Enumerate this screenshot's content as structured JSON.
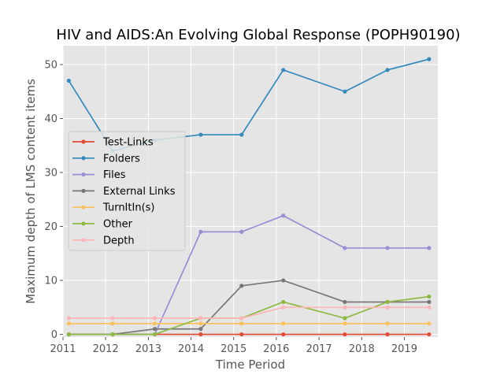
{
  "chart_data": {
    "type": "line",
    "title": "HIV and AIDS:An Evolving Global Response (POPH90190)",
    "xlabel": "Time Period",
    "ylabel": "Maximum depth of LMS content items",
    "xlim": [
      "2011-01-01",
      "2019-10-15"
    ],
    "ylim": [
      -0.5,
      53.5
    ],
    "x_ticks": [
      "2011",
      "2012",
      "2013",
      "2014",
      "2015",
      "2016",
      "2017",
      "2018",
      "2019"
    ],
    "y_ticks": [
      0,
      10,
      20,
      30,
      40,
      50
    ],
    "grid": true,
    "legend_position": "center-left",
    "x": [
      "2011-02-20",
      "2012-03-01",
      "2013-02-25",
      "2014-03-25",
      "2015-03-10",
      "2016-03-01",
      "2017-08-10",
      "2018-08-10",
      "2019-08-01"
    ],
    "series": [
      {
        "name": "Test-Links",
        "color": "#E24A33",
        "values": [
          0,
          0,
          0,
          0,
          0,
          0,
          0,
          0,
          0
        ]
      },
      {
        "name": "Folders",
        "color": "#348ABD",
        "values": [
          47,
          34,
          36,
          37,
          37,
          49,
          45,
          49,
          51
        ]
      },
      {
        "name": "Files",
        "color": "#988ED5",
        "values": [
          0,
          0,
          0,
          19,
          19,
          22,
          16,
          16,
          16
        ]
      },
      {
        "name": "External Links",
        "color": "#777777",
        "values": [
          0,
          0,
          1,
          1,
          9,
          10,
          6,
          6,
          6
        ]
      },
      {
        "name": "TurnItIn(s)",
        "color": "#FBC15E",
        "values": [
          2,
          2,
          2,
          2,
          2,
          2,
          2,
          2,
          2
        ]
      },
      {
        "name": "Other",
        "color": "#8EBA42",
        "values": [
          0,
          0,
          0,
          3,
          3,
          6,
          3,
          6,
          7
        ]
      },
      {
        "name": "Depth",
        "color": "#FFB5B8",
        "values": [
          3,
          3,
          3,
          3,
          3,
          5,
          5,
          5,
          5
        ]
      }
    ]
  }
}
